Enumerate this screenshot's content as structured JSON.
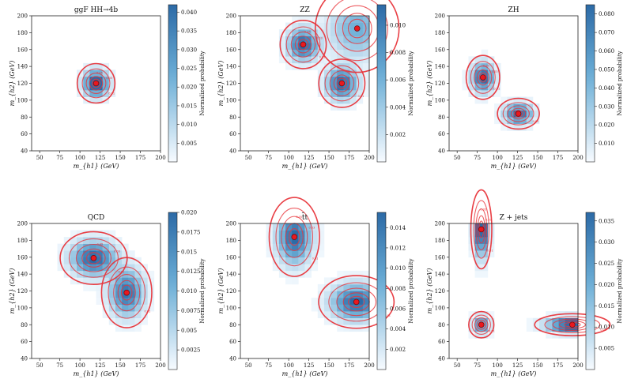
{
  "chart_data": [
    {
      "type": "heatmap",
      "title": "ggF HH→4b",
      "xlabel": "m_{h1} (GeV)",
      "ylabel": "m_{h2} (GeV)",
      "xlim": [
        40,
        200
      ],
      "ylim": [
        40,
        200
      ],
      "xticks": [
        50,
        75,
        100,
        125,
        150,
        175,
        200
      ],
      "yticks": [
        40,
        60,
        80,
        100,
        120,
        140,
        160,
        180,
        200
      ],
      "colorbar": {
        "label": "Normalized probability",
        "max": 0.042,
        "ticks": [
          0.005,
          0.01,
          0.015,
          0.02,
          0.025,
          0.03,
          0.035,
          0.04
        ]
      },
      "peaks": [
        {
          "x": 120,
          "y": 120,
          "wx": 9,
          "wy": 9,
          "a": 1.0
        }
      ],
      "contour_levels": [
        "0.01",
        "0.03",
        "0.05"
      ]
    },
    {
      "type": "heatmap",
      "title": "ZZ",
      "xlabel": "m_{h1} (GeV)",
      "ylabel": "m_{h2} (GeV)",
      "xlim": [
        40,
        200
      ],
      "ylim": [
        40,
        200
      ],
      "xticks": [
        50,
        75,
        100,
        125,
        150,
        175,
        200
      ],
      "yticks": [
        40,
        60,
        80,
        100,
        120,
        140,
        160,
        180,
        200
      ],
      "colorbar": {
        "label": "Normalized probability",
        "max": 0.0115,
        "ticks": [
          0.002,
          0.004,
          0.006,
          0.008,
          0.01
        ]
      },
      "peaks": [
        {
          "x": 118,
          "y": 166,
          "wx": 11,
          "wy": 11,
          "a": 1.0
        },
        {
          "x": 166,
          "y": 120,
          "wx": 11,
          "wy": 11,
          "a": 1.0
        },
        {
          "x": 185,
          "y": 185,
          "wx": 20,
          "wy": 20,
          "a": 0.45
        }
      ],
      "contour_levels": [
        "0.01",
        "0.03",
        "0.05"
      ]
    },
    {
      "type": "heatmap",
      "title": "ZH",
      "xlabel": "m_{h1} (GeV)",
      "ylabel": "m_{h2} (GeV)",
      "xlim": [
        40,
        200
      ],
      "ylim": [
        40,
        200
      ],
      "xticks": [
        50,
        75,
        100,
        125,
        150,
        175,
        200
      ],
      "yticks": [
        40,
        60,
        80,
        100,
        120,
        140,
        160,
        180,
        200
      ],
      "colorbar": {
        "label": "Normalized probability",
        "max": 0.085,
        "ticks": [
          0.01,
          0.02,
          0.03,
          0.04,
          0.05,
          0.06,
          0.07,
          0.08
        ]
      },
      "peaks": [
        {
          "x": 82,
          "y": 127,
          "wx": 8,
          "wy": 10,
          "a": 1.0
        },
        {
          "x": 126,
          "y": 84,
          "wx": 10,
          "wy": 7,
          "a": 1.0
        }
      ],
      "contour_levels": [
        "0.01",
        "0.03",
        "0.05"
      ]
    },
    {
      "type": "heatmap",
      "title": "QCD",
      "xlabel": "m_{h1} (GeV)",
      "ylabel": "m_{h2} (GeV)",
      "xlim": [
        40,
        200
      ],
      "ylim": [
        40,
        200
      ],
      "xticks": [
        50,
        75,
        100,
        125,
        150,
        175,
        200
      ],
      "yticks": [
        40,
        60,
        80,
        100,
        120,
        140,
        160,
        180,
        200
      ],
      "colorbar": {
        "label": "Normalized probability",
        "max": 0.02,
        "ticks": [
          0.0025,
          0.005,
          0.0075,
          0.01,
          0.0125,
          0.015,
          0.0175,
          0.02
        ]
      },
      "peaks": [
        {
          "x": 117,
          "y": 159,
          "wx": 16,
          "wy": 12,
          "a": 1.0
        },
        {
          "x": 158,
          "y": 118,
          "wx": 12,
          "wy": 16,
          "a": 0.9
        }
      ],
      "contour_levels": [
        "0.01",
        "0.03",
        "0.05"
      ]
    },
    {
      "type": "heatmap",
      "title": "t̄t",
      "xlabel": "m_{h1} (GeV)",
      "ylabel": "m_{h2} (GeV)",
      "xlim": [
        40,
        200
      ],
      "ylim": [
        40,
        200
      ],
      "xticks": [
        50,
        75,
        100,
        125,
        150,
        175,
        200
      ],
      "yticks": [
        40,
        60,
        80,
        100,
        120,
        140,
        160,
        180,
        200
      ],
      "colorbar": {
        "label": "Normalized probability",
        "max": 0.0155,
        "ticks": [
          0.002,
          0.004,
          0.006,
          0.008,
          0.01,
          0.012,
          0.014
        ]
      },
      "peaks": [
        {
          "x": 107,
          "y": 184,
          "wx": 12,
          "wy": 18,
          "a": 1.0
        },
        {
          "x": 184,
          "y": 107,
          "wx": 18,
          "wy": 12,
          "a": 1.0
        }
      ],
      "contour_levels": [
        "0.01",
        "0.03",
        "0.05"
      ]
    },
    {
      "type": "heatmap",
      "title": "Z + jets",
      "xlabel": "m_{h1} (GeV)",
      "ylabel": "m_{h2} (GeV)",
      "xlim": [
        40,
        200
      ],
      "ylim": [
        40,
        200
      ],
      "xticks": [
        50,
        75,
        100,
        125,
        150,
        175,
        200
      ],
      "yticks": [
        40,
        60,
        80,
        100,
        120,
        140,
        160,
        180,
        200
      ],
      "colorbar": {
        "label": "Normalized probability",
        "max": 0.037,
        "ticks": [
          0.005,
          0.01,
          0.015,
          0.02,
          0.025,
          0.03,
          0.035
        ]
      },
      "peaks": [
        {
          "x": 80,
          "y": 193,
          "wx": 5,
          "wy": 18,
          "a": 1.0
        },
        {
          "x": 193,
          "y": 80,
          "wx": 18,
          "wy": 5,
          "a": 1.0
        },
        {
          "x": 80,
          "y": 80,
          "wx": 6,
          "wy": 6,
          "a": 0.55
        }
      ],
      "contour_levels": [
        "0.01",
        "0.03",
        "0.05"
      ]
    }
  ],
  "colors": {
    "contour": "#e8353b",
    "peak_marker": "#e8191f",
    "cmap_low": "#f7fbff",
    "cmap_high": "#2c6aa6"
  },
  "colorbar_label": "Normalized probability"
}
